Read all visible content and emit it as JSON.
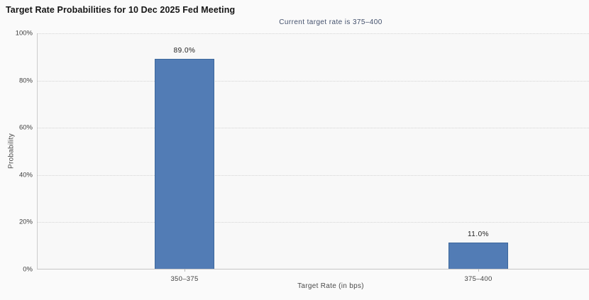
{
  "chart_data": {
    "type": "bar",
    "title": "Target Rate Probabilities for 10 Dec 2025 Fed Meeting",
    "subtitle": "Current target rate is 375–400",
    "categories": [
      "350–375",
      "375–400"
    ],
    "values": [
      89.0,
      11.0
    ],
    "value_labels": [
      "89.0%",
      "11.0%"
    ],
    "xlabel": "Target Rate (in bps)",
    "ylabel": "Probability",
    "ylim": [
      0,
      100
    ],
    "yticks": [
      0,
      20,
      40,
      60,
      80,
      100
    ],
    "ytick_labels": [
      "0%",
      "20%",
      "40%",
      "60%",
      "80%",
      "100%"
    ],
    "legend": "none",
    "grid": "horizontal-dotted",
    "colors": {
      "bar_fill": "#527cb5",
      "bar_border": "#3d689c",
      "subtitle_text": "#43506c",
      "gridline": "#d4d4d4",
      "axis_line": "#c6c6c6",
      "background": "#fafafa"
    }
  }
}
